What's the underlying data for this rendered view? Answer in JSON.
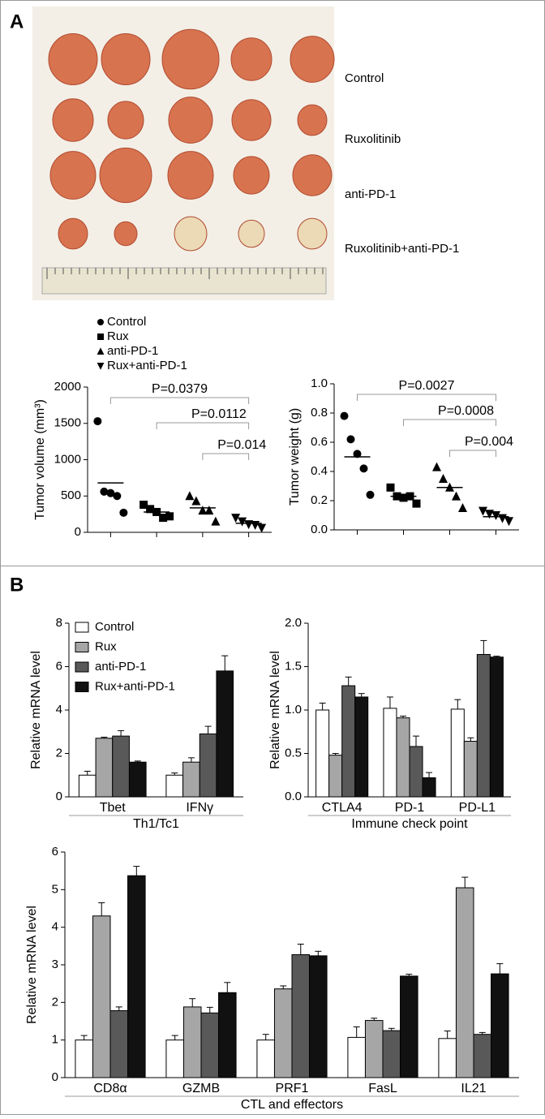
{
  "panels": {
    "a": "A",
    "b": "B"
  },
  "photo": {
    "labels": [
      "Control",
      "Ruxolitinib",
      "anti-PD-1",
      "Ruxolitinib+anti-PD-1"
    ]
  },
  "chart_data": [
    {
      "type": "scatter",
      "ylabel": "Tumor volume (mm³)",
      "ylim": [
        0,
        2000
      ],
      "yticks": [
        0,
        500,
        1000,
        1500,
        2000
      ],
      "annotations": [
        "P=0.0379",
        "P=0.0112",
        "P=0.014"
      ],
      "series": [
        {
          "name": "Control",
          "marker": "circle",
          "color": "#000000",
          "values": [
            1530,
            560,
            540,
            500,
            270
          ],
          "mean": 680
        },
        {
          "name": "Rux",
          "marker": "square",
          "color": "#000000",
          "values": [
            380,
            320,
            280,
            200,
            220
          ],
          "mean": 280
        },
        {
          "name": "anti-PD-1",
          "marker": "triangle-up",
          "color": "#000000",
          "values": [
            500,
            430,
            300,
            300,
            150
          ],
          "mean": 336
        },
        {
          "name": "Rux+anti-PD-1",
          "marker": "triangle-down",
          "color": "#000000",
          "values": [
            200,
            150,
            110,
            100,
            60
          ],
          "mean": 124
        }
      ]
    },
    {
      "type": "scatter",
      "ylabel": "Tumor weight (g)",
      "ylim": [
        0,
        1.0
      ],
      "yticks": [
        {
          "value": 0,
          "label": "0.0"
        },
        0.2,
        0.4,
        0.6,
        0.8,
        {
          "value": 1,
          "label": "1.0"
        }
      ],
      "annotations": [
        "P=0.0027",
        "P=0.0008",
        "P=0.004"
      ],
      "series": [
        {
          "marker": "circle",
          "color": "#000000",
          "values": [
            0.78,
            0.62,
            0.52,
            0.42,
            0.24
          ],
          "mean": 0.5
        },
        {
          "marker": "square",
          "color": "#000000",
          "values": [
            0.29,
            0.23,
            0.22,
            0.23,
            0.18
          ],
          "mean": 0.23
        },
        {
          "marker": "triangle-up",
          "color": "#000000",
          "values": [
            0.43,
            0.35,
            0.29,
            0.23,
            0.15
          ],
          "mean": 0.29
        },
        {
          "marker": "triangle-down",
          "color": "#000000",
          "values": [
            0.13,
            0.11,
            0.1,
            0.08,
            0.06
          ],
          "mean": 0.09
        }
      ]
    },
    {
      "type": "bar",
      "ylabel": "Relative mRNA level",
      "group_label": "Th1/Tc1",
      "categories": [
        "Tbet",
        "IFNγ"
      ],
      "ylim": [
        0,
        8
      ],
      "yticks": [
        0,
        2,
        4,
        6,
        8
      ],
      "series": [
        {
          "name": "Control",
          "color": "#ffffff",
          "values": [
            1.0,
            1.0
          ],
          "errors": [
            0.18,
            0.1
          ]
        },
        {
          "name": "Rux",
          "color": "#a6a6a6",
          "values": [
            2.7,
            1.6
          ],
          "errors": [
            0.05,
            0.2
          ]
        },
        {
          "name": "anti-PD-1",
          "color": "#595959",
          "values": [
            2.8,
            2.9
          ],
          "errors": [
            0.25,
            0.35
          ]
        },
        {
          "name": "Rux+anti-PD-1",
          "color": "#111111",
          "values": [
            1.6,
            5.8
          ],
          "errors": [
            0.05,
            0.7
          ]
        }
      ]
    },
    {
      "type": "bar",
      "ylabel": "Relative mRNA level",
      "group_label": "Immune check point",
      "categories": [
        "CTLA4",
        "PD-1",
        "PD-L1"
      ],
      "ylim": [
        0,
        2.0
      ],
      "yticks": [
        {
          "value": 0,
          "label": "0.0"
        },
        0.5,
        {
          "value": 1,
          "label": "1.0"
        },
        1.5,
        {
          "value": 2,
          "label": "2.0"
        }
      ],
      "series": [
        {
          "color": "#ffffff",
          "values": [
            1.0,
            1.02,
            1.01
          ],
          "errors": [
            0.08,
            0.13,
            0.11
          ]
        },
        {
          "color": "#a6a6a6",
          "values": [
            0.48,
            0.91,
            0.64
          ],
          "errors": [
            0.02,
            0.02,
            0.04
          ]
        },
        {
          "color": "#595959",
          "values": [
            1.28,
            0.58,
            1.64
          ],
          "errors": [
            0.1,
            0.12,
            0.16
          ]
        },
        {
          "color": "#111111",
          "values": [
            1.15,
            0.22,
            1.61
          ],
          "errors": [
            0.04,
            0.06,
            0.01
          ]
        }
      ]
    },
    {
      "type": "bar",
      "ylabel": "Relative mRNA level",
      "group_label": "CTL and effectors",
      "categories": [
        "CD8α",
        "GZMB",
        "PRF1",
        "FasL",
        "IL21"
      ],
      "ylim": [
        0,
        6
      ],
      "yticks": [
        0,
        1,
        2,
        3,
        4,
        5,
        6
      ],
      "series": [
        {
          "color": "#ffffff",
          "values": [
            1.0,
            1.0,
            1.0,
            1.07,
            1.04
          ],
          "errors": [
            0.12,
            0.12,
            0.15,
            0.28,
            0.2
          ]
        },
        {
          "color": "#a6a6a6",
          "values": [
            4.3,
            1.88,
            2.36,
            1.52,
            5.05
          ],
          "errors": [
            0.35,
            0.22,
            0.08,
            0.06,
            0.28
          ]
        },
        {
          "color": "#595959",
          "values": [
            1.78,
            1.72,
            3.27,
            1.25,
            1.15
          ],
          "errors": [
            0.1,
            0.15,
            0.28,
            0.06,
            0.05
          ]
        },
        {
          "color": "#111111",
          "values": [
            5.37,
            2.26,
            3.24,
            2.7,
            2.76
          ],
          "errors": [
            0.25,
            0.27,
            0.12,
            0.05,
            0.27
          ]
        }
      ]
    }
  ]
}
